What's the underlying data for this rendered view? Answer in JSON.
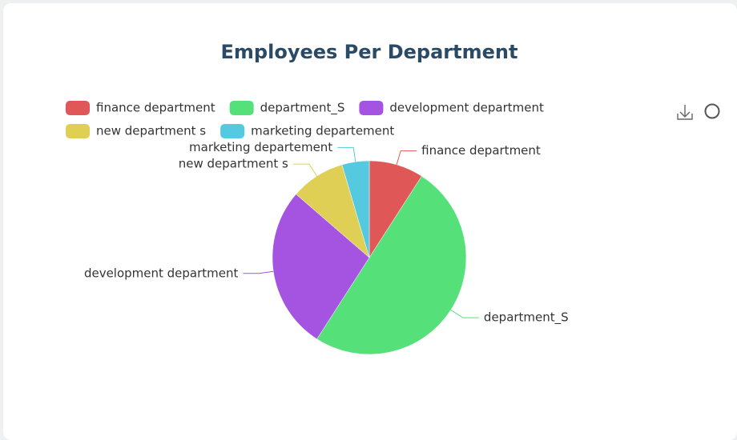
{
  "chart_data": {
    "type": "pie",
    "title": "Employees Per Department",
    "categories": [
      "finance  department",
      "department_S",
      "development department",
      "new department s",
      "marketing departement"
    ],
    "values": [
      2,
      11,
      6,
      2,
      1
    ],
    "colors": [
      "#e05757",
      "#55e07a",
      "#a454e0",
      "#e0cf55",
      "#55c9e0"
    ]
  }
}
